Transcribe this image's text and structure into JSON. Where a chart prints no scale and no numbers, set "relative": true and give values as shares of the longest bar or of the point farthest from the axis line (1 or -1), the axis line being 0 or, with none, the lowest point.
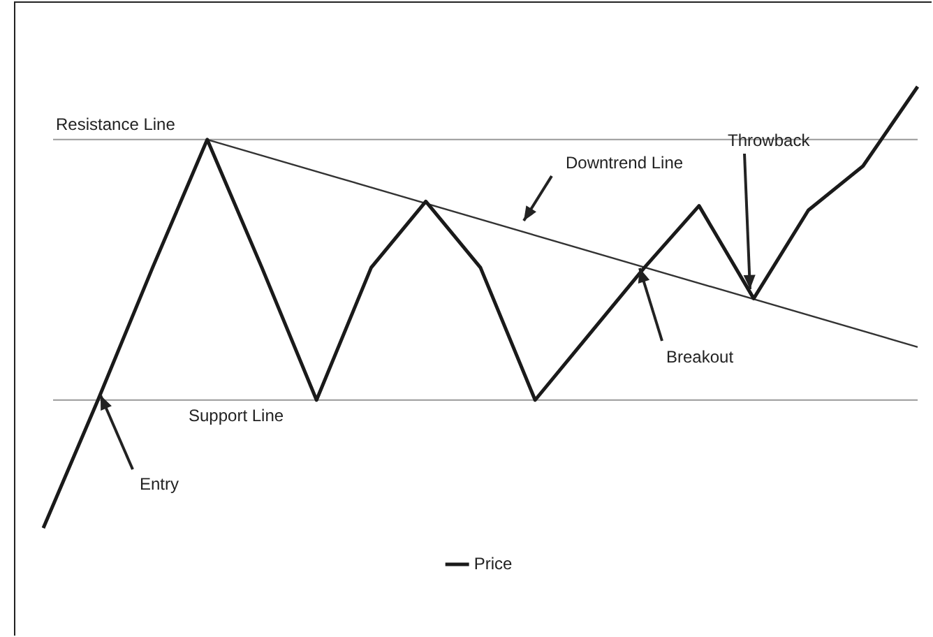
{
  "chart_data": {
    "type": "line",
    "relative": true,
    "legend": "bottom",
    "marker": "none",
    "categories": [
      null,
      null,
      null,
      null,
      null,
      null,
      null,
      null,
      null,
      null,
      null,
      null,
      null,
      null,
      null,
      null,
      null
    ],
    "series": [
      {
        "name": "Price",
        "color": "#1a1a1a",
        "values": [
          0,
          0.29,
          0.59,
          0.88,
          0.59,
          0.29,
          0.59,
          0.74,
          0.59,
          0.29,
          0.44,
          0.59,
          0.73,
          0.52,
          0.72,
          0.82,
          1
        ]
      },
      {
        "type": "line",
        "color": "#333333",
        "values": [
          null,
          null,
          null,
          0.88,
          null,
          null,
          null,
          null,
          null,
          null,
          null,
          null,
          null,
          null,
          null,
          null,
          0.41
        ]
      }
    ],
    "ref_lines": [
      {
        "axis": "y",
        "value": 0.88,
        "label": "Resistance Line",
        "color": "#999999"
      },
      {
        "axis": "y",
        "value": 0.29,
        "label": "Support Line",
        "color": "#999999"
      }
    ],
    "annotations": [
      "Downtrend Line",
      "Entry",
      "Breakout",
      "Throwback"
    ]
  }
}
